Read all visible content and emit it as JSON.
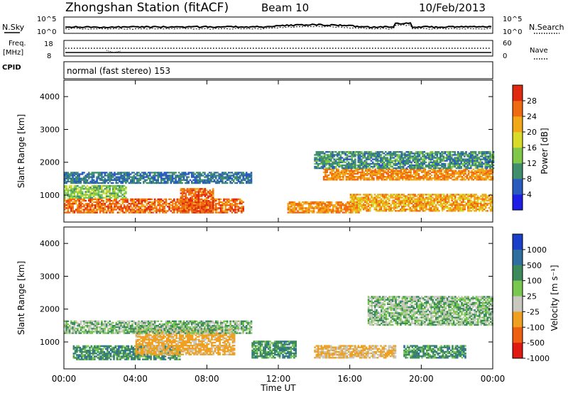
{
  "header": {
    "station": "Zhongshan Station (fitACF)",
    "beam": "Beam 10",
    "date": "10/Feb/2013"
  },
  "noise_panel": {
    "left_label": "N.Sky",
    "right_label": "N.Search",
    "left_ticks": [
      "10^5",
      "10^0"
    ],
    "right_ticks": [
      "10^5",
      "10^0"
    ]
  },
  "freq_panel": {
    "left_label": "Freq.",
    "left_unit": "[MHz]",
    "right_label": "Nave",
    "left_ticks": [
      "18",
      "8"
    ],
    "right_ticks": [
      "60",
      "0"
    ]
  },
  "cpid_label": "CPID",
  "mode_text": "normal (fast stereo) 153",
  "time_axis": {
    "label": "Time UT",
    "ticks": [
      "00:00",
      "04:00",
      "08:00",
      "12:00",
      "16:00",
      "20:00",
      "00:00"
    ]
  },
  "range_axis": {
    "label": "Slant Range [km]",
    "ticks": [
      "1000",
      "2000",
      "3000",
      "4000"
    ]
  },
  "power_colorbar": {
    "label": "Power [dB]",
    "ticks": [
      "4",
      "8",
      "12",
      "16",
      "20",
      "24",
      "28"
    ],
    "colors": [
      "#1e1ee6",
      "#2a5cc0",
      "#3f8f6e",
      "#7fc84a",
      "#d8dc28",
      "#f0a818",
      "#ef6a10",
      "#e02a10"
    ]
  },
  "velocity_colorbar": {
    "label": "Velocity [m s⁻¹]",
    "ticks": [
      "1000",
      "500",
      "100",
      "25",
      "-25",
      "-100",
      "-500",
      "-1000"
    ],
    "colors": [
      "#1a3fc8",
      "#2f6fa0",
      "#3c8a5c",
      "#78c850",
      "#c8c8c0",
      "#f0a020",
      "#ee6010",
      "#e01a10"
    ]
  },
  "chart_data": {
    "type": "heatmap",
    "panels": [
      "Power [dB]",
      "Velocity [m s⁻¹]"
    ],
    "x_range_hours": [
      0,
      24
    ],
    "y_range_km": [
      180,
      4500
    ],
    "power_regions": [
      {
        "t0": 0.0,
        "t1": 10.0,
        "r0": 450,
        "r1": 900,
        "value_db": 26
      },
      {
        "t0": 0.0,
        "t1": 3.5,
        "r0": 900,
        "r1": 1300,
        "value_db": 14
      },
      {
        "t0": 0.0,
        "t1": 10.5,
        "r0": 1350,
        "r1": 1700,
        "value_db": 8
      },
      {
        "t0": 6.5,
        "t1": 8.3,
        "r0": 450,
        "r1": 1200,
        "value_db": 27
      },
      {
        "t0": 12.5,
        "t1": 16.5,
        "r0": 450,
        "r1": 800,
        "value_db": 24
      },
      {
        "t0": 16.0,
        "t1": 24.0,
        "r0": 500,
        "r1": 1000,
        "value_db": 22
      },
      {
        "t0": 14.5,
        "t1": 24.0,
        "r0": 1450,
        "r1": 1800,
        "value_db": 24
      },
      {
        "t0": 14.0,
        "t1": 24.0,
        "r0": 1800,
        "r1": 2300,
        "value_db": 10
      }
    ],
    "velocity_regions": [
      {
        "t0": 0.5,
        "t1": 6.5,
        "r0": 450,
        "r1": 900,
        "value_ms": 60
      },
      {
        "t0": 4.0,
        "t1": 9.5,
        "r0": 600,
        "r1": 1400,
        "value_ms": -150
      },
      {
        "t0": 0.0,
        "t1": 10.5,
        "r0": 1250,
        "r1": 1650,
        "value_ms": 0
      },
      {
        "t0": 10.5,
        "t1": 13.0,
        "r0": 500,
        "r1": 1000,
        "value_ms": 60
      },
      {
        "t0": 14.0,
        "t1": 18.5,
        "r0": 500,
        "r1": 900,
        "value_ms": -120
      },
      {
        "t0": 19.0,
        "t1": 22.5,
        "r0": 500,
        "r1": 900,
        "value_ms": 60
      },
      {
        "t0": 17.0,
        "t1": 24.0,
        "r0": 1500,
        "r1": 2400,
        "value_ms": 0
      }
    ]
  }
}
